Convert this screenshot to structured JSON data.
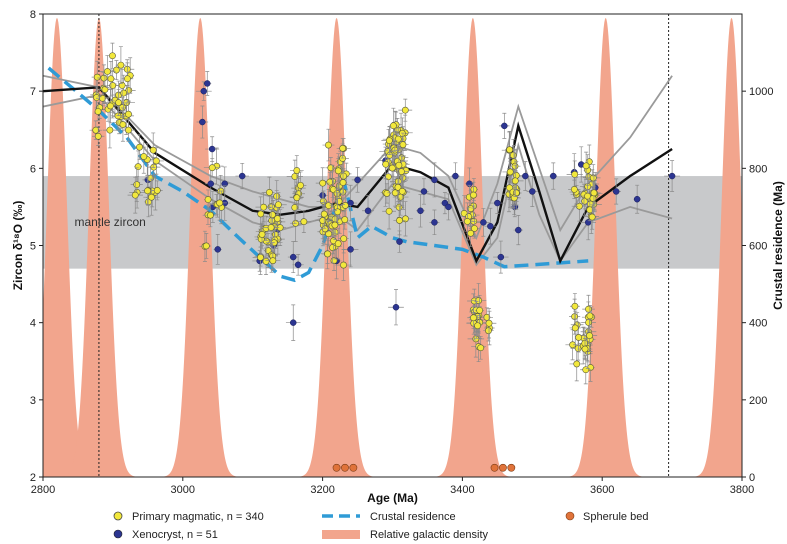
{
  "chart_data": {
    "type": "scatter",
    "xlabel": "Age (Ma)",
    "ylabel": "Zircon δ¹⁸O (‰)",
    "y2label": "Crustal residence (Ma)",
    "xlim": [
      2800,
      3800
    ],
    "ylim": [
      2,
      8
    ],
    "y2lim": [
      0,
      1200
    ],
    "x_ticks": [
      "2800",
      "3000",
      "3200",
      "3400",
      "3600",
      "3800"
    ],
    "y_ticks": [
      "2",
      "3",
      "4",
      "5",
      "6",
      "7",
      "8"
    ],
    "y2_ticks": [
      "0",
      "200",
      "400",
      "600",
      "800",
      "1000"
    ],
    "mantle_band": {
      "label": "mantle zircon",
      "ymin": 4.7,
      "ymax": 5.9
    },
    "reference_lines_x": [
      2880,
      3695
    ],
    "galactic_peaks": {
      "centers": [
        2820,
        2880,
        3025,
        3220,
        3415,
        3605,
        3785
      ],
      "height_y2": 1190,
      "width": 14
    },
    "crustal_residence": [
      [
        2808,
        1060
      ],
      [
        2880,
        950
      ],
      [
        2920,
        880
      ],
      [
        2960,
        780
      ],
      [
        3000,
        740
      ],
      [
        3040,
        690
      ],
      [
        3080,
        620
      ],
      [
        3110,
        570
      ],
      [
        3140,
        520
      ],
      [
        3160,
        510
      ],
      [
        3180,
        530
      ],
      [
        3200,
        600
      ],
      [
        3215,
        680
      ],
      [
        3230,
        770
      ],
      [
        3250,
        620
      ],
      [
        3270,
        650
      ],
      [
        3300,
        620
      ],
      [
        3320,
        610
      ],
      [
        3360,
        600
      ],
      [
        3400,
        590
      ],
      [
        3430,
        570
      ],
      [
        3460,
        545
      ],
      [
        3500,
        550
      ],
      [
        3540,
        555
      ],
      [
        3580,
        560
      ]
    ],
    "grey_curves": [
      [
        [
          2800,
          7.2
        ],
        [
          2880,
          7.05
        ],
        [
          2960,
          6.3
        ],
        [
          3040,
          5.9
        ],
        [
          3100,
          5.7
        ],
        [
          3140,
          5.6
        ],
        [
          3180,
          5.5
        ],
        [
          3220,
          5.5
        ],
        [
          3250,
          5.8
        ],
        [
          3300,
          6.3
        ],
        [
          3340,
          6.2
        ],
        [
          3380,
          5.9
        ],
        [
          3420,
          5.1
        ],
        [
          3450,
          5.8
        ],
        [
          3480,
          6.8
        ],
        [
          3510,
          6.0
        ],
        [
          3540,
          5.2
        ],
        [
          3580,
          5.8
        ],
        [
          3640,
          6.4
        ],
        [
          3700,
          7.2
        ]
      ],
      [
        [
          2800,
          6.8
        ],
        [
          2880,
          6.95
        ],
        [
          2960,
          6.1
        ],
        [
          3040,
          5.6
        ],
        [
          3100,
          5.3
        ],
        [
          3140,
          5.2
        ],
        [
          3180,
          5.3
        ],
        [
          3220,
          5.4
        ],
        [
          3250,
          5.2
        ],
        [
          3300,
          5.8
        ],
        [
          3340,
          5.7
        ],
        [
          3380,
          5.6
        ],
        [
          3420,
          4.75
        ],
        [
          3450,
          5.1
        ],
        [
          3480,
          6.3
        ],
        [
          3510,
          5.4
        ],
        [
          3540,
          4.8
        ],
        [
          3580,
          5.3
        ],
        [
          3640,
          5.5
        ],
        [
          3700,
          5.35
        ]
      ]
    ],
    "trend_line": [
      [
        2800,
        7.0
      ],
      [
        2880,
        7.05
      ],
      [
        2960,
        6.2
      ],
      [
        3040,
        5.75
      ],
      [
        3100,
        5.45
      ],
      [
        3140,
        5.4
      ],
      [
        3180,
        5.45
      ],
      [
        3220,
        5.55
      ],
      [
        3250,
        5.5
      ],
      [
        3300,
        6.05
      ],
      [
        3340,
        5.95
      ],
      [
        3380,
        5.75
      ],
      [
        3420,
        4.8
      ],
      [
        3450,
        5.3
      ],
      [
        3480,
        6.55
      ],
      [
        3510,
        5.7
      ],
      [
        3540,
        4.8
      ],
      [
        3580,
        5.5
      ],
      [
        3640,
        5.9
      ],
      [
        3700,
        6.25
      ]
    ],
    "primary_clusters": [
      {
        "x": [
          2875,
          2925
        ],
        "y": [
          6.3,
          7.5
        ],
        "n": 40
      },
      {
        "x": [
          2930,
          2965
        ],
        "y": [
          5.5,
          6.4
        ],
        "n": 18
      },
      {
        "x": [
          3030,
          3060
        ],
        "y": [
          4.9,
          6.2
        ],
        "n": 12
      },
      {
        "x": [
          3110,
          3140
        ],
        "y": [
          4.6,
          5.8
        ],
        "n": 35
      },
      {
        "x": [
          3160,
          3180
        ],
        "y": [
          5.2,
          6.0
        ],
        "n": 10
      },
      {
        "x": [
          3200,
          3235
        ],
        "y": [
          4.7,
          6.4
        ],
        "n": 55
      },
      {
        "x": [
          3290,
          3320
        ],
        "y": [
          5.2,
          6.9
        ],
        "n": 60
      },
      {
        "x": [
          3400,
          3420
        ],
        "y": [
          5.0,
          5.8
        ],
        "n": 12
      },
      {
        "x": [
          3415,
          3440
        ],
        "y": [
          3.6,
          4.4
        ],
        "n": 25
      },
      {
        "x": [
          3465,
          3480
        ],
        "y": [
          5.5,
          6.3
        ],
        "n": 20
      },
      {
        "x": [
          3555,
          3585
        ],
        "y": [
          3.2,
          4.4
        ],
        "n": 25
      },
      {
        "x": [
          3560,
          3590
        ],
        "y": [
          5.3,
          6.1
        ],
        "n": 28
      }
    ],
    "xenocrysts": [
      [
        3030,
        7.0
      ],
      [
        3035,
        7.1
      ],
      [
        3028,
        6.6
      ],
      [
        3042,
        6.25
      ],
      [
        3040,
        5.8
      ],
      [
        3043,
        5.5
      ],
      [
        3060,
        5.8
      ],
      [
        3085,
        5.9
      ],
      [
        3135,
        5.2
      ],
      [
        3158,
        4.85
      ],
      [
        3158,
        4.0
      ],
      [
        3165,
        4.75
      ],
      [
        3240,
        5.55
      ],
      [
        3265,
        5.45
      ],
      [
        3305,
        4.2
      ],
      [
        3345,
        5.7
      ],
      [
        3360,
        5.85
      ],
      [
        3375,
        5.55
      ],
      [
        3390,
        5.9
      ],
      [
        3440,
        5.25
      ],
      [
        3455,
        4.85
      ],
      [
        3475,
        5.5
      ],
      [
        3490,
        5.9
      ],
      [
        3530,
        5.9
      ],
      [
        3570,
        6.05
      ],
      [
        3620,
        5.7
      ],
      [
        3700,
        5.9
      ],
      [
        3650,
        5.6
      ],
      [
        3380,
        5.5
      ],
      [
        3460,
        6.55
      ],
      [
        3250,
        5.85
      ],
      [
        3050,
        4.95
      ],
      [
        2950,
        5.85
      ],
      [
        3060,
        5.55
      ],
      [
        3500,
        5.7
      ],
      [
        3430,
        5.3
      ],
      [
        3220,
        4.8
      ],
      [
        3410,
        5.8
      ],
      [
        3480,
        5.2
      ],
      [
        3360,
        5.3
      ],
      [
        3130,
        5.0
      ],
      [
        3110,
        4.8
      ],
      [
        3200,
        5.65
      ],
      [
        3310,
        5.05
      ],
      [
        3560,
        5.95
      ],
      [
        3590,
        5.75
      ],
      [
        3290,
        6.1
      ],
      [
        3450,
        5.55
      ],
      [
        3580,
        5.3
      ],
      [
        3240,
        4.95
      ],
      [
        3340,
        5.45
      ]
    ],
    "spherule_beds": [
      [
        3220,
        2.12
      ],
      [
        3232,
        2.12
      ],
      [
        3244,
        2.12
      ],
      [
        3446,
        2.12
      ],
      [
        3458,
        2.12
      ],
      [
        3470,
        2.12
      ]
    ],
    "legend": [
      {
        "label": "Primary magmatic, n = 340",
        "color": "#f2e83c",
        "icon": "circle-marker-icon"
      },
      {
        "label": "Xenocryst, n = 51",
        "color": "#2c3591",
        "icon": "circle-marker-icon"
      },
      {
        "label": "Crustal residence",
        "color": "#2f9bd6",
        "icon": "dashed-line-icon"
      },
      {
        "label": "Relative galactic density",
        "color": "#f2a58d",
        "icon": "filled-bar-icon"
      },
      {
        "label": "Spherule bed",
        "color": "#e0733a",
        "icon": "circle-marker-icon"
      }
    ],
    "colors": {
      "primary": "#f2e83c",
      "xenocryst": "#2c3591",
      "crustal": "#2f9bd6",
      "galactic": "#f2a58d",
      "spherule": "#e0733a",
      "band": "#c8c9cb",
      "trend": "#111111",
      "grey_curve": "#9a9a9a"
    }
  }
}
